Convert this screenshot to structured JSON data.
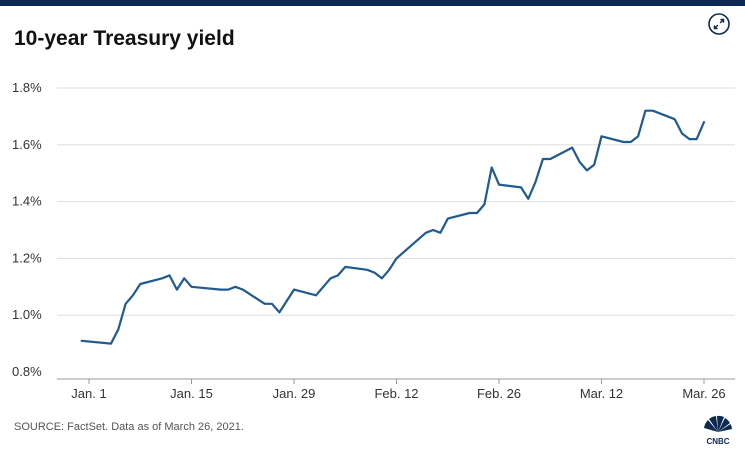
{
  "header": {
    "title": "10-year Treasury yield",
    "expand_icon": "expand-arrows-icon"
  },
  "footer": {
    "source": "SOURCE: FactSet. Data as of March 26, 2021.",
    "logo_text": "CNBC"
  },
  "colors": {
    "line": "#1f5b8e",
    "brand": "#0e2a52",
    "grid": "#dddddd"
  },
  "chart_data": {
    "type": "line",
    "title": "10-year Treasury yield",
    "xlabel": "",
    "ylabel": "",
    "ylim": [
      0.8,
      1.8
    ],
    "yticks": [
      0.8,
      1.0,
      1.2,
      1.4,
      1.6,
      1.8
    ],
    "ytick_labels": [
      "0.8%",
      "1.0%",
      "1.2%",
      "1.4%",
      "1.6%",
      "1.8%"
    ],
    "xticks": [
      "2021-01-01",
      "2021-01-15",
      "2021-01-29",
      "2021-02-12",
      "2021-02-26",
      "2021-03-12",
      "2021-03-26"
    ],
    "xtick_labels": [
      "Jan. 1",
      "Jan. 15",
      "Jan. 29",
      "Feb. 12",
      "Feb. 26",
      "Mar. 12",
      "Mar. 26"
    ],
    "grid": "horizontal",
    "legend": "none",
    "series": [
      {
        "x": [
          "2020-12-31",
          "2021-01-04",
          "2021-01-05",
          "2021-01-06",
          "2021-01-07",
          "2021-01-08",
          "2021-01-11",
          "2021-01-12",
          "2021-01-13",
          "2021-01-14",
          "2021-01-15",
          "2021-01-19",
          "2021-01-20",
          "2021-01-21",
          "2021-01-22",
          "2021-01-25",
          "2021-01-26",
          "2021-01-27",
          "2021-01-28",
          "2021-01-29",
          "2021-02-01",
          "2021-02-02",
          "2021-02-03",
          "2021-02-04",
          "2021-02-05",
          "2021-02-08",
          "2021-02-09",
          "2021-02-10",
          "2021-02-11",
          "2021-02-12",
          "2021-02-16",
          "2021-02-17",
          "2021-02-18",
          "2021-02-19",
          "2021-02-22",
          "2021-02-23",
          "2021-02-24",
          "2021-02-25",
          "2021-02-26",
          "2021-03-01",
          "2021-03-02",
          "2021-03-03",
          "2021-03-04",
          "2021-03-05",
          "2021-03-08",
          "2021-03-09",
          "2021-03-10",
          "2021-03-11",
          "2021-03-12",
          "2021-03-15",
          "2021-03-16",
          "2021-03-17",
          "2021-03-18",
          "2021-03-19",
          "2021-03-22",
          "2021-03-23",
          "2021-03-24",
          "2021-03-25",
          "2021-03-26"
        ],
        "values": [
          0.91,
          0.9,
          0.95,
          1.04,
          1.07,
          1.11,
          1.13,
          1.14,
          1.09,
          1.13,
          1.1,
          1.09,
          1.09,
          1.1,
          1.09,
          1.04,
          1.04,
          1.01,
          1.05,
          1.09,
          1.07,
          1.1,
          1.13,
          1.14,
          1.17,
          1.16,
          1.15,
          1.13,
          1.16,
          1.2,
          1.29,
          1.3,
          1.29,
          1.34,
          1.36,
          1.36,
          1.39,
          1.52,
          1.46,
          1.45,
          1.41,
          1.47,
          1.55,
          1.55,
          1.59,
          1.54,
          1.51,
          1.53,
          1.63,
          1.61,
          1.61,
          1.63,
          1.72,
          1.72,
          1.69,
          1.64,
          1.62,
          1.62,
          1.68
        ]
      }
    ]
  }
}
